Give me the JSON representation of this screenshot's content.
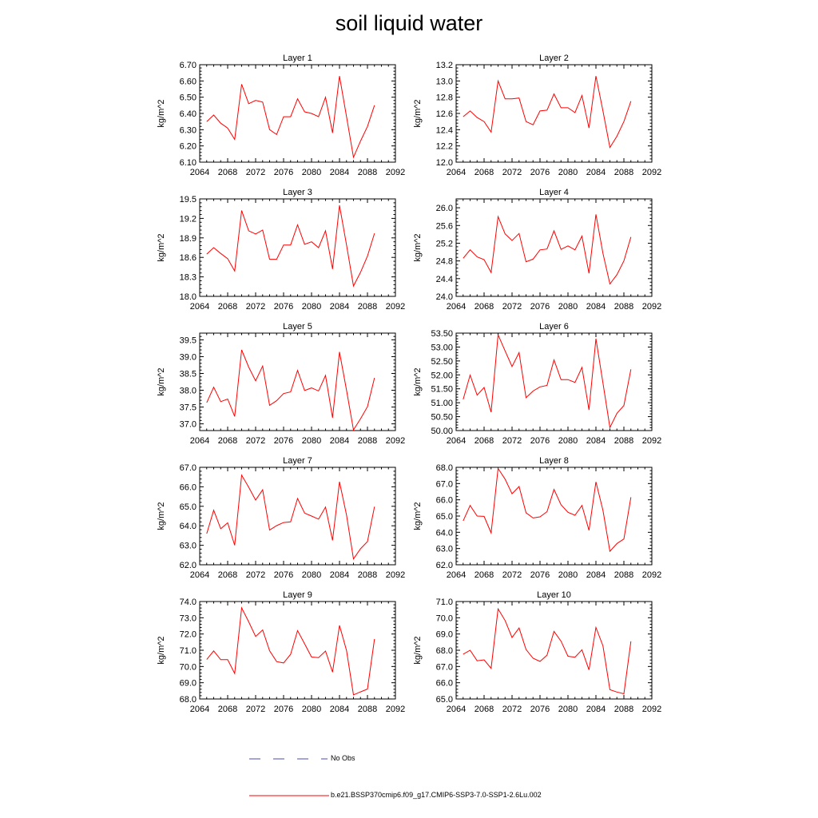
{
  "title": "soil liquid water",
  "legend": {
    "items": [
      {
        "label": "No Obs",
        "color": "#4b4bb4",
        "style": "dashed"
      },
      {
        "label": "b.e21.BSSP370cmip6.f09_g17.CMIP6-SSP3-7.0-SSP1-2.6Lu.002",
        "color": "#ff0000",
        "style": "solid"
      }
    ]
  },
  "chart_data": [
    {
      "type": "line",
      "title": "Layer 1",
      "ylabel": "kg/m^2",
      "xlim": [
        2064,
        2092
      ],
      "x_ticks": [
        2064,
        2068,
        2072,
        2076,
        2080,
        2084,
        2088,
        2092
      ],
      "ylim": [
        6.1,
        6.7
      ],
      "y_ticks": [
        "6.10",
        "6.20",
        "6.30",
        "6.40",
        "6.50",
        "6.60",
        "6.70"
      ],
      "series": [
        {
          "color": "#ff0000",
          "x": [
            2065,
            2066,
            2067,
            2068,
            2069,
            2070,
            2071,
            2072,
            2073,
            2074,
            2075,
            2076,
            2077,
            2078,
            2079,
            2080,
            2081,
            2082,
            2083,
            2084,
            2085,
            2086,
            2087,
            2088,
            2089
          ],
          "values": [
            6.35,
            6.39,
            6.34,
            6.31,
            6.24,
            6.58,
            6.46,
            6.48,
            6.47,
            6.3,
            6.27,
            6.38,
            6.38,
            6.49,
            6.41,
            6.4,
            6.38,
            6.5,
            6.28,
            6.63,
            6.38,
            6.13,
            6.23,
            6.32,
            6.45
          ]
        }
      ]
    },
    {
      "type": "line",
      "title": "Layer 2",
      "ylabel": "kg/m^2",
      "xlim": [
        2064,
        2092
      ],
      "x_ticks": [
        2064,
        2068,
        2072,
        2076,
        2080,
        2084,
        2088,
        2092
      ],
      "ylim": [
        12.0,
        13.2
      ],
      "y_ticks": [
        "12.0",
        "12.2",
        "12.4",
        "12.6",
        "12.8",
        "13.0",
        "13.2"
      ],
      "series": [
        {
          "color": "#ff0000",
          "x": [
            2065,
            2066,
            2067,
            2068,
            2069,
            2070,
            2071,
            2072,
            2073,
            2074,
            2075,
            2076,
            2077,
            2078,
            2079,
            2080,
            2081,
            2082,
            2083,
            2084,
            2085,
            2086,
            2087,
            2088,
            2089
          ],
          "values": [
            12.56,
            12.63,
            12.55,
            12.5,
            12.37,
            13.0,
            12.78,
            12.78,
            12.79,
            12.5,
            12.46,
            12.63,
            12.64,
            12.84,
            12.67,
            12.67,
            12.61,
            12.82,
            12.42,
            13.06,
            12.63,
            12.18,
            12.32,
            12.5,
            12.75
          ]
        }
      ]
    },
    {
      "type": "line",
      "title": "Layer 3",
      "ylabel": "kg/m^2",
      "xlim": [
        2064,
        2092
      ],
      "x_ticks": [
        2064,
        2068,
        2072,
        2076,
        2080,
        2084,
        2088,
        2092
      ],
      "ylim": [
        18.0,
        19.5
      ],
      "y_ticks": [
        "18.0",
        "18.3",
        "18.6",
        "18.9",
        "19.2",
        "19.5"
      ],
      "series": [
        {
          "color": "#ff0000",
          "x": [
            2065,
            2066,
            2067,
            2068,
            2069,
            2070,
            2071,
            2072,
            2073,
            2074,
            2075,
            2076,
            2077,
            2078,
            2079,
            2080,
            2081,
            2082,
            2083,
            2084,
            2085,
            2086,
            2087,
            2088,
            2089
          ],
          "values": [
            18.65,
            18.75,
            18.66,
            18.58,
            18.39,
            19.32,
            19.01,
            18.96,
            19.02,
            18.57,
            18.57,
            18.79,
            18.79,
            19.1,
            18.8,
            18.84,
            18.75,
            19.01,
            18.42,
            19.4,
            18.79,
            18.16,
            18.37,
            18.62,
            18.97
          ]
        }
      ]
    },
    {
      "type": "line",
      "title": "Layer 4",
      "ylabel": "kg/m^2",
      "xlim": [
        2064,
        2092
      ],
      "x_ticks": [
        2064,
        2068,
        2072,
        2076,
        2080,
        2084,
        2088,
        2092
      ],
      "ylim": [
        24.0,
        26.2
      ],
      "y_ticks": [
        "24.0",
        "24.4",
        "24.8",
        "25.2",
        "25.6",
        "26.0"
      ],
      "series": [
        {
          "color": "#ff0000",
          "x": [
            2065,
            2066,
            2067,
            2068,
            2069,
            2070,
            2071,
            2072,
            2073,
            2074,
            2075,
            2076,
            2077,
            2078,
            2079,
            2080,
            2081,
            2082,
            2083,
            2084,
            2085,
            2086,
            2087,
            2088,
            2089
          ],
          "values": [
            24.86,
            25.05,
            24.89,
            24.83,
            24.54,
            25.8,
            25.41,
            25.26,
            25.42,
            24.78,
            24.84,
            25.05,
            25.07,
            25.48,
            25.06,
            25.14,
            25.05,
            25.36,
            24.52,
            25.85,
            24.97,
            24.28,
            24.49,
            24.8,
            25.34
          ]
        }
      ]
    },
    {
      "type": "line",
      "title": "Layer 5",
      "ylabel": "kg/m^2",
      "xlim": [
        2064,
        2092
      ],
      "x_ticks": [
        2064,
        2068,
        2072,
        2076,
        2080,
        2084,
        2088,
        2092
      ],
      "ylim": [
        36.8,
        39.7
      ],
      "y_ticks": [
        "37.0",
        "37.5",
        "38.0",
        "38.5",
        "39.0",
        "39.5"
      ],
      "series": [
        {
          "color": "#ff0000",
          "x": [
            2065,
            2066,
            2067,
            2068,
            2069,
            2070,
            2071,
            2072,
            2073,
            2074,
            2075,
            2076,
            2077,
            2078,
            2079,
            2080,
            2081,
            2082,
            2083,
            2084,
            2085,
            2086,
            2087,
            2088,
            2089
          ],
          "values": [
            37.63,
            38.09,
            37.66,
            37.74,
            37.22,
            39.2,
            38.69,
            38.28,
            38.72,
            37.55,
            37.69,
            37.9,
            37.95,
            38.59,
            37.99,
            38.07,
            37.98,
            38.44,
            37.18,
            39.14,
            38.0,
            36.82,
            37.15,
            37.51,
            38.37
          ]
        }
      ]
    },
    {
      "type": "line",
      "title": "Layer 6",
      "ylabel": "kg/m^2",
      "xlim": [
        2064,
        2092
      ],
      "x_ticks": [
        2064,
        2068,
        2072,
        2076,
        2080,
        2084,
        2088,
        2092
      ],
      "ylim": [
        50.0,
        53.5
      ],
      "y_ticks": [
        "50.00",
        "50.50",
        "51.00",
        "51.50",
        "52.00",
        "52.50",
        "53.00",
        "53.50"
      ],
      "series": [
        {
          "color": "#ff0000",
          "x": [
            2065,
            2066,
            2067,
            2068,
            2069,
            2070,
            2071,
            2072,
            2073,
            2074,
            2075,
            2076,
            2077,
            2078,
            2079,
            2080,
            2081,
            2082,
            2083,
            2084,
            2085,
            2086,
            2087,
            2088,
            2089
          ],
          "values": [
            51.12,
            51.99,
            51.27,
            51.55,
            50.66,
            53.44,
            52.86,
            52.3,
            52.8,
            51.18,
            51.42,
            51.57,
            51.62,
            52.54,
            51.83,
            51.83,
            51.73,
            52.27,
            50.74,
            53.3,
            51.71,
            50.11,
            50.62,
            50.9,
            52.2
          ]
        }
      ]
    },
    {
      "type": "line",
      "title": "Layer 7",
      "ylabel": "kg/m^2",
      "xlim": [
        2064,
        2092
      ],
      "x_ticks": [
        2064,
        2068,
        2072,
        2076,
        2080,
        2084,
        2088,
        2092
      ],
      "ylim": [
        62.0,
        67.0
      ],
      "y_ticks": [
        "62.0",
        "63.0",
        "64.0",
        "65.0",
        "66.0",
        "67.0"
      ],
      "series": [
        {
          "color": "#ff0000",
          "x": [
            2065,
            2066,
            2067,
            2068,
            2069,
            2070,
            2071,
            2072,
            2073,
            2074,
            2075,
            2076,
            2077,
            2078,
            2079,
            2080,
            2081,
            2082,
            2083,
            2084,
            2085,
            2086,
            2087,
            2088,
            2089
          ],
          "values": [
            63.6,
            64.8,
            63.85,
            64.15,
            63.0,
            66.6,
            65.98,
            65.32,
            65.85,
            63.78,
            64.01,
            64.17,
            64.2,
            65.4,
            64.65,
            64.5,
            64.34,
            64.96,
            63.25,
            66.26,
            64.55,
            62.3,
            62.82,
            63.19,
            64.98
          ]
        }
      ]
    },
    {
      "type": "line",
      "title": "Layer 8",
      "ylabel": "kg/m^2",
      "xlim": [
        2064,
        2092
      ],
      "x_ticks": [
        2064,
        2068,
        2072,
        2076,
        2080,
        2084,
        2088,
        2092
      ],
      "ylim": [
        62.0,
        68.0
      ],
      "y_ticks": [
        "62.0",
        "63.0",
        "64.0",
        "65.0",
        "66.0",
        "67.0",
        "68.0"
      ],
      "series": [
        {
          "color": "#ff0000",
          "x": [
            2065,
            2066,
            2067,
            2068,
            2069,
            2070,
            2071,
            2072,
            2073,
            2074,
            2075,
            2076,
            2077,
            2078,
            2079,
            2080,
            2081,
            2082,
            2083,
            2084,
            2085,
            2086,
            2087,
            2088,
            2089
          ],
          "values": [
            64.7,
            65.65,
            65.0,
            64.98,
            63.96,
            67.93,
            67.27,
            66.37,
            66.82,
            65.2,
            64.88,
            64.95,
            65.27,
            66.64,
            65.7,
            65.23,
            65.05,
            65.65,
            64.12,
            67.1,
            65.35,
            62.83,
            63.31,
            63.59,
            66.16
          ]
        }
      ]
    },
    {
      "type": "line",
      "title": "Layer 9",
      "ylabel": "kg/m^2",
      "xlim": [
        2064,
        2092
      ],
      "x_ticks": [
        2064,
        2068,
        2072,
        2076,
        2080,
        2084,
        2088,
        2092
      ],
      "ylim": [
        68.0,
        74.0
      ],
      "y_ticks": [
        "68.0",
        "69.0",
        "70.0",
        "71.0",
        "72.0",
        "73.0",
        "74.0"
      ],
      "series": [
        {
          "color": "#ff0000",
          "x": [
            2065,
            2066,
            2067,
            2068,
            2069,
            2070,
            2071,
            2072,
            2073,
            2074,
            2075,
            2076,
            2077,
            2078,
            2079,
            2080,
            2081,
            2082,
            2083,
            2084,
            2085,
            2086,
            2087,
            2088,
            2089
          ],
          "values": [
            70.43,
            70.96,
            70.42,
            70.42,
            69.57,
            73.61,
            72.75,
            71.85,
            72.25,
            70.97,
            70.3,
            70.22,
            70.75,
            72.21,
            71.4,
            70.58,
            70.55,
            70.95,
            69.65,
            72.53,
            70.98,
            68.25,
            68.44,
            68.61,
            71.69
          ]
        }
      ]
    },
    {
      "type": "line",
      "title": "Layer 10",
      "ylabel": "kg/m^2",
      "xlim": [
        2064,
        2092
      ],
      "x_ticks": [
        2064,
        2068,
        2072,
        2076,
        2080,
        2084,
        2088,
        2092
      ],
      "ylim": [
        65.0,
        71.0
      ],
      "y_ticks": [
        "65.0",
        "66.0",
        "67.0",
        "68.0",
        "69.0",
        "70.0",
        "71.0"
      ],
      "series": [
        {
          "color": "#ff0000",
          "x": [
            2065,
            2066,
            2067,
            2068,
            2069,
            2070,
            2071,
            2072,
            2073,
            2074,
            2075,
            2076,
            2077,
            2078,
            2079,
            2080,
            2081,
            2082,
            2083,
            2084,
            2085,
            2086,
            2087,
            2088,
            2089
          ],
          "values": [
            67.76,
            68.0,
            67.35,
            67.41,
            66.89,
            70.55,
            69.83,
            68.78,
            69.37,
            68.05,
            67.51,
            67.31,
            67.7,
            69.16,
            68.56,
            67.63,
            67.57,
            68.03,
            66.79,
            69.4,
            68.27,
            65.57,
            65.43,
            65.32,
            68.55
          ]
        }
      ]
    }
  ]
}
